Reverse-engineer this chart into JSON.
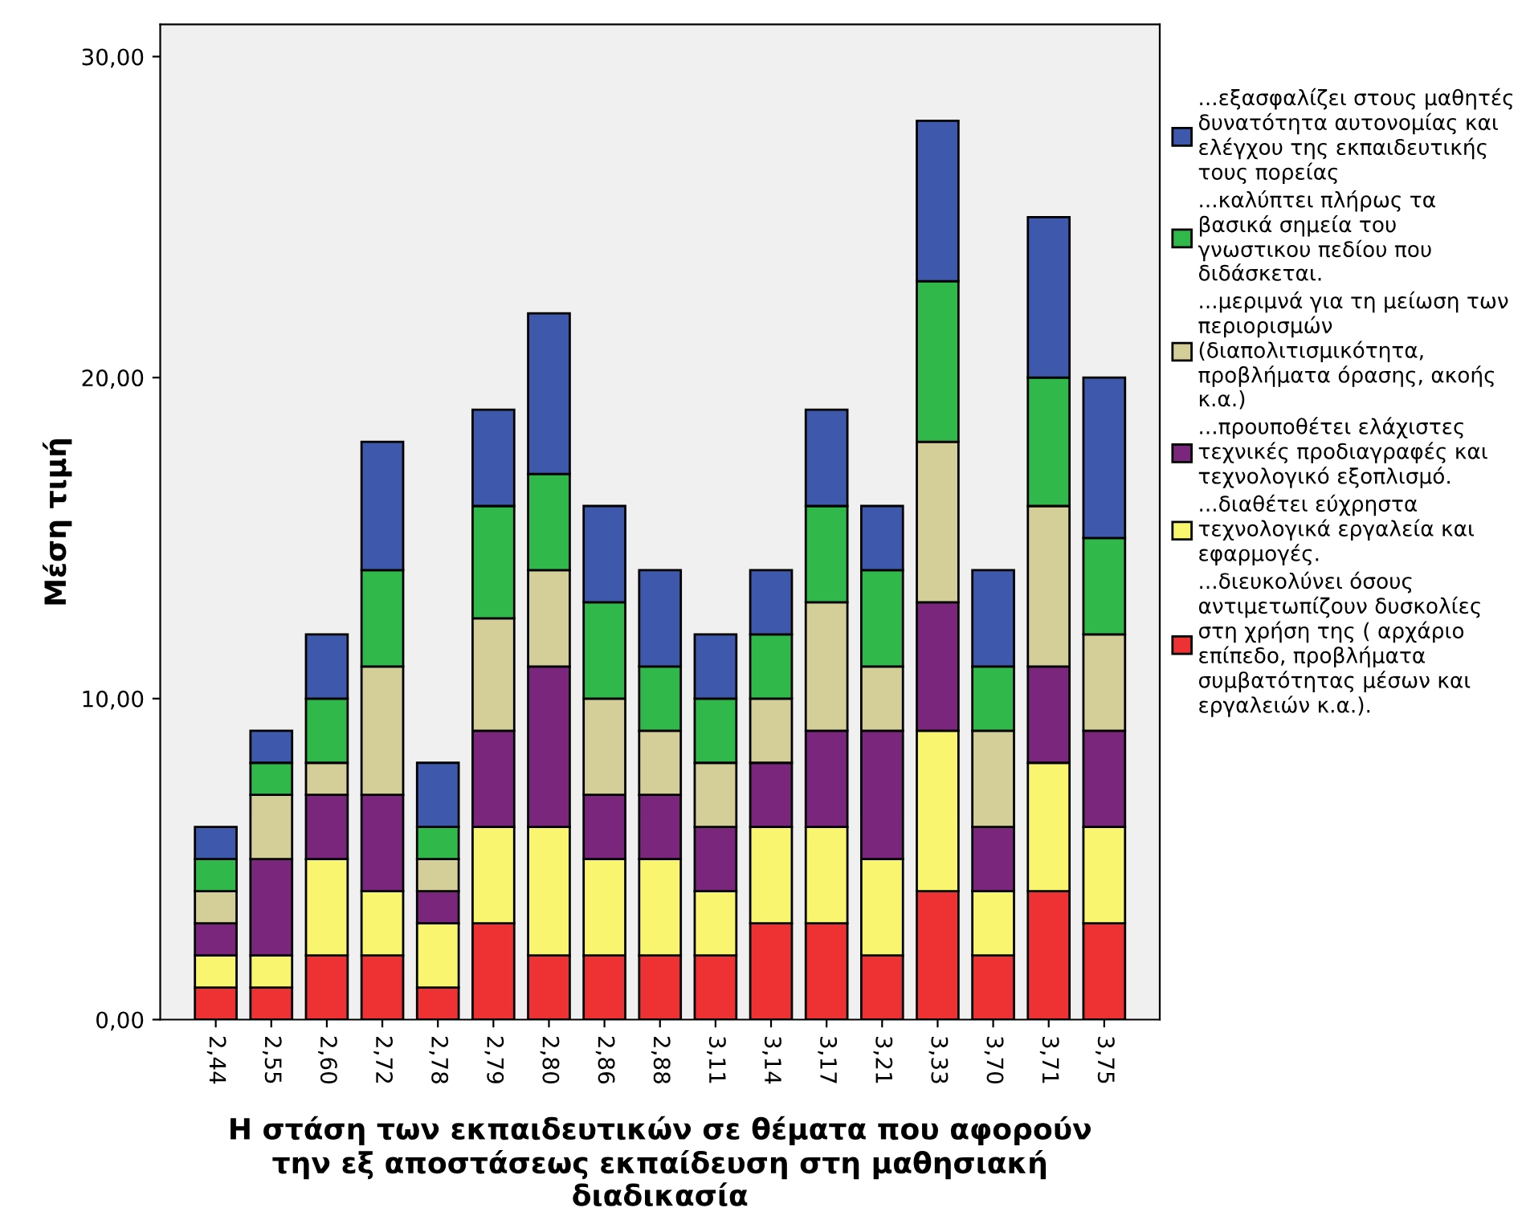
{
  "chart_data": {
    "type": "bar",
    "stacked": true,
    "xlabel": "Η στάση των εκπαιδευτικών σε θέματα που αφορούν\nτην εξ αποστάσεως εκπαίδευση στη μαθησιακή\nδιαδικασία",
    "ylabel": "Μέση τιμή",
    "categories": [
      "2,44",
      "2,55",
      "2,60",
      "2,72",
      "2,78",
      "2,79",
      "2,80",
      "2,86",
      "2,88",
      "3,11",
      "3,14",
      "3,17",
      "3,21",
      "3,33",
      "3,70",
      "3,71",
      "3,75"
    ],
    "series": [
      {
        "name": "...διευκολύνει όσους\nαντιμετωπίζουν δυσκολίες\nστη χρήση της ( αρχάριο\nεπίπεδο, προβλήματα\nσυμβατότητας μέσων και\nεργαλειών κ.α.).",
        "color": "#ee3233",
        "values": [
          1,
          1,
          2,
          2,
          1,
          3,
          2,
          2,
          2,
          2,
          3,
          3,
          2,
          4,
          2,
          4,
          3
        ]
      },
      {
        "name": "...διαθέτει εύχρηστα\nτεχνολογικά εργαλεία και\nεφαρμογές.",
        "color": "#f9f56e",
        "values": [
          1,
          1,
          3,
          2,
          2,
          3,
          4,
          3,
          3,
          2,
          3,
          3,
          3,
          5,
          2,
          4,
          3
        ]
      },
      {
        "name": "...προυποθέτει ελάχιστες\nτεχνικές προδιαγραφές και\nτεχνολογικό εξοπλισμό.",
        "color": "#7b267d",
        "values": [
          1,
          3,
          2,
          3,
          1,
          3,
          5,
          2,
          2,
          2,
          2,
          3,
          4,
          4,
          2,
          3,
          3
        ]
      },
      {
        "name": "...μεριμνά για τη μείωση των\nπεριορισμών\n(διαπολιτισμικότητα,\nπροβλήματα όρασης, ακοής\nκ.α.)",
        "color": "#d4cf98",
        "values": [
          1,
          2,
          1,
          4,
          1,
          3.5,
          3,
          3,
          2,
          2,
          2,
          4,
          2,
          5,
          3,
          5,
          3
        ]
      },
      {
        "name": "...καλύπτει πλήρως τα\nβασικά σημεία του\nγνωστικου πεδίου που\nδιδάσκεται.",
        "color": "#31b84a",
        "values": [
          1,
          1,
          2,
          3,
          1,
          3.5,
          3,
          3,
          2,
          2,
          2,
          3,
          3,
          5,
          2,
          4,
          3
        ]
      },
      {
        "name": "...εξασφαλίζει στους μαθητές\nδυνατότητα αυτονομίας και\nελέγχου της εκπαιδευτικής\nτους πορείας",
        "color": "#3e58ac",
        "values": [
          1,
          1,
          2,
          4,
          2,
          3,
          5,
          3,
          3,
          2,
          2,
          3,
          2,
          5,
          3,
          5,
          5
        ]
      }
    ],
    "ylim": [
      0,
      31
    ],
    "yticks": [
      {
        "value": 0,
        "label": "0,00"
      },
      {
        "value": 10,
        "label": "10,00"
      },
      {
        "value": 20,
        "label": "20,00"
      },
      {
        "value": 30,
        "label": "30,00"
      }
    ],
    "legend": "right",
    "grid": false
  }
}
